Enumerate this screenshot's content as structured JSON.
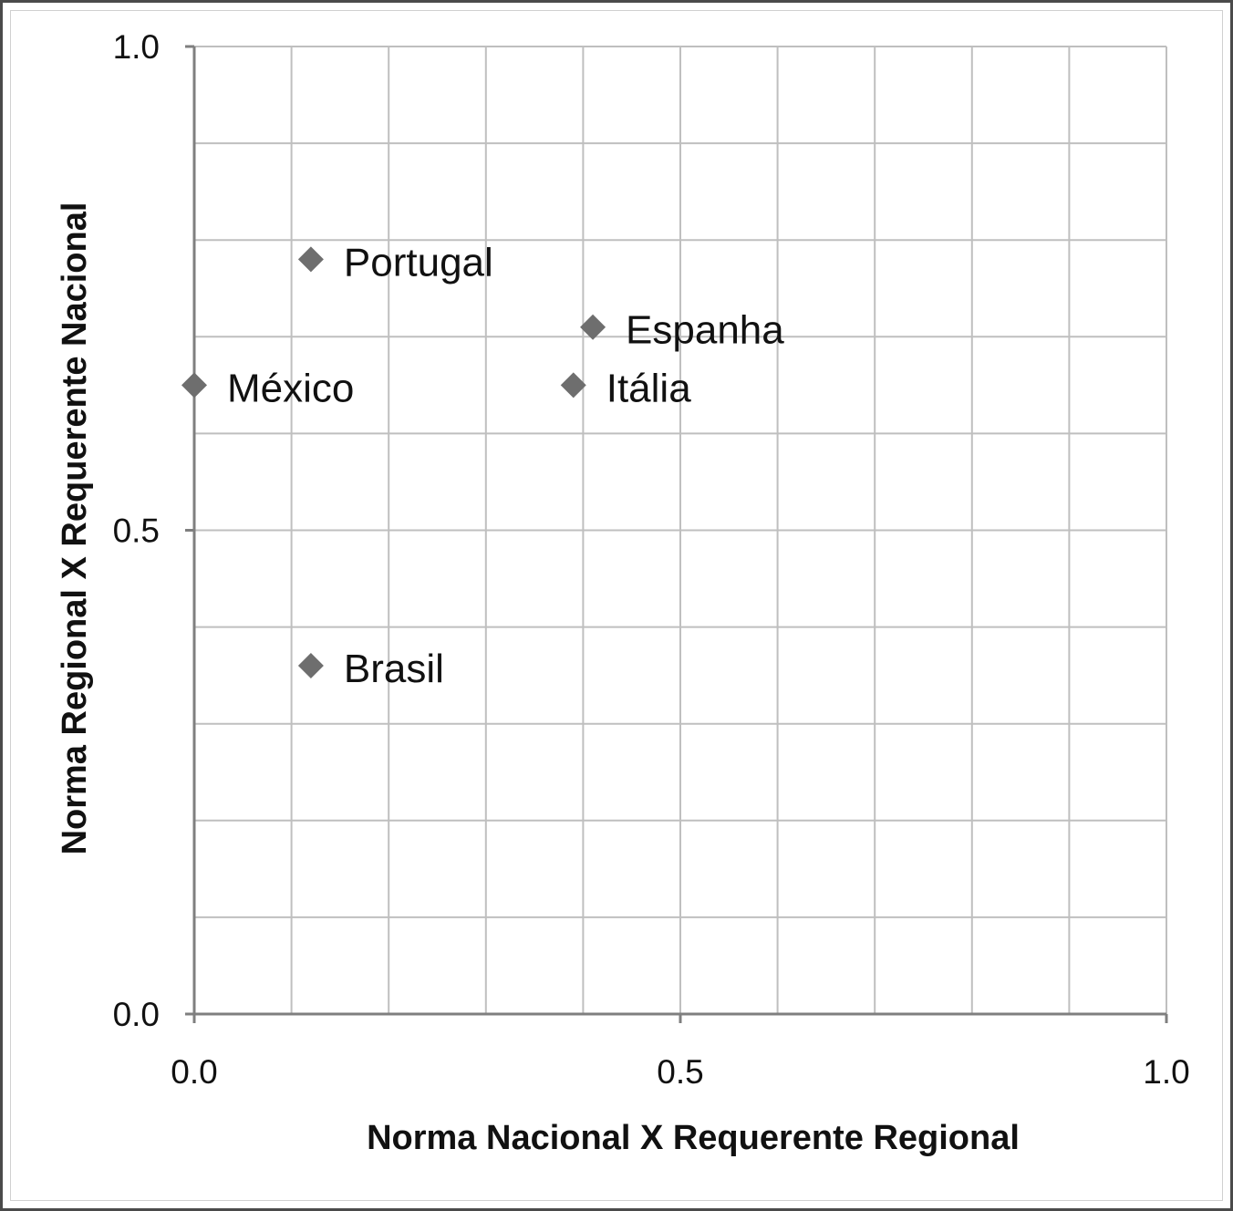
{
  "chart_data": {
    "type": "scatter",
    "xlabel": "Norma Nacional  X Requerente Regional",
    "ylabel": "Norma Regional X Requerente Nacional",
    "xlim": [
      0,
      1
    ],
    "ylim": [
      0,
      1
    ],
    "grid": true,
    "x_tick_labels": [
      "0.0",
      "0.5",
      "1.0"
    ],
    "y_tick_labels": [
      "0.0",
      "0.5",
      "1.0"
    ],
    "marker": "diamond",
    "marker_color": "#6e6e6e",
    "points": [
      {
        "label": "Portugal",
        "x": 0.12,
        "y": 0.78
      },
      {
        "label": "Espanha",
        "x": 0.41,
        "y": 0.71
      },
      {
        "label": "México",
        "x": 0.0,
        "y": 0.65
      },
      {
        "label": "Itália",
        "x": 0.39,
        "y": 0.65
      },
      {
        "label": "Brasil",
        "x": 0.12,
        "y": 0.36
      }
    ]
  }
}
